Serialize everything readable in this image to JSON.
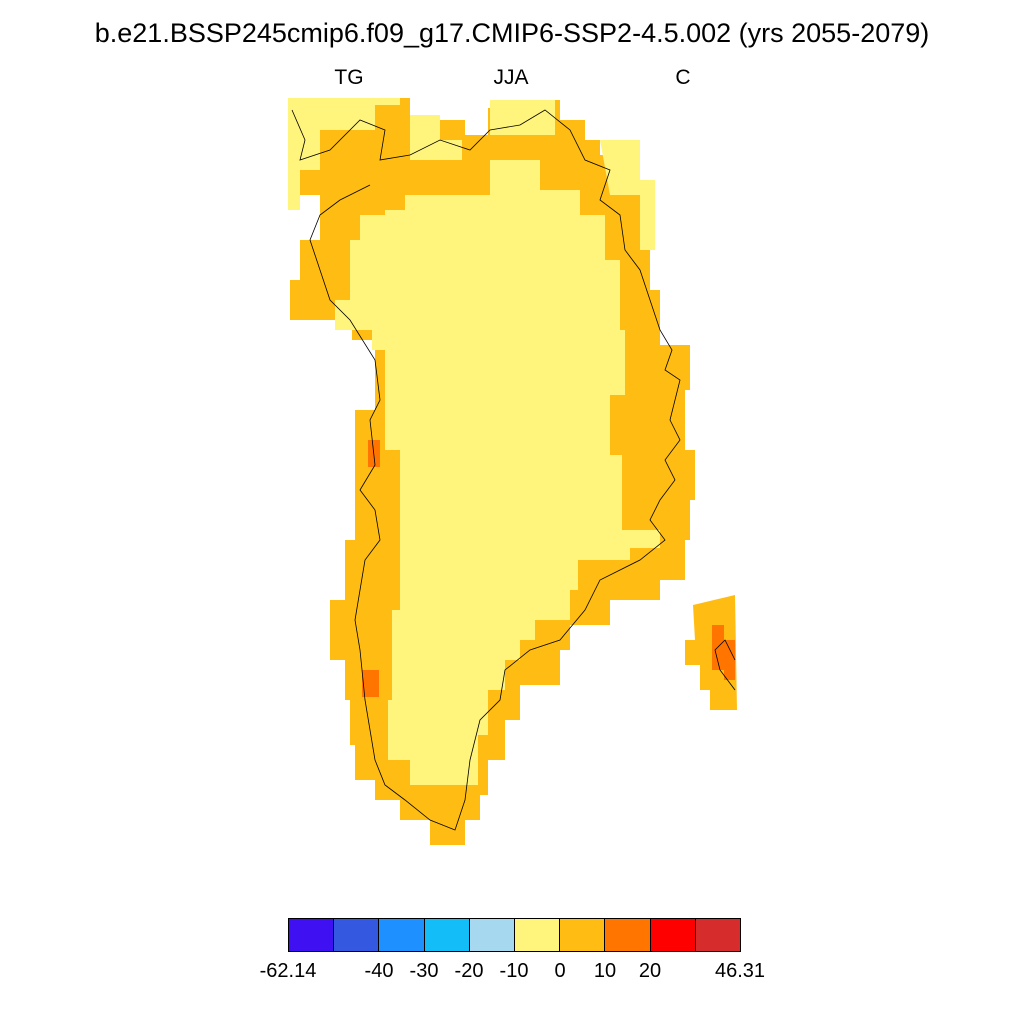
{
  "title": "b.e21.BSSP245cmip6.f09_g17.CMIP6-SSP2-4.5.002 (yrs 2055-2079)",
  "subtitles": {
    "left": "TG",
    "center": "JJA",
    "right": "C"
  },
  "colorbar": {
    "colors": [
      "#3f10f2",
      "#3458e0",
      "#1e90ff",
      "#13bdf7",
      "#a6d8f0",
      "#fff47c",
      "#ffbd14",
      "#ff7500",
      "#ff0000",
      "#d62c2c"
    ],
    "labels": [
      "-62.14",
      "-40",
      "-30",
      "-20",
      "-10",
      "0",
      "10",
      "20",
      "46.31"
    ]
  },
  "map_colors": {
    "interior": "#fff47c",
    "coastal": "#ffbd14",
    "hot": "#ff7500",
    "coastline": "#000000"
  }
}
